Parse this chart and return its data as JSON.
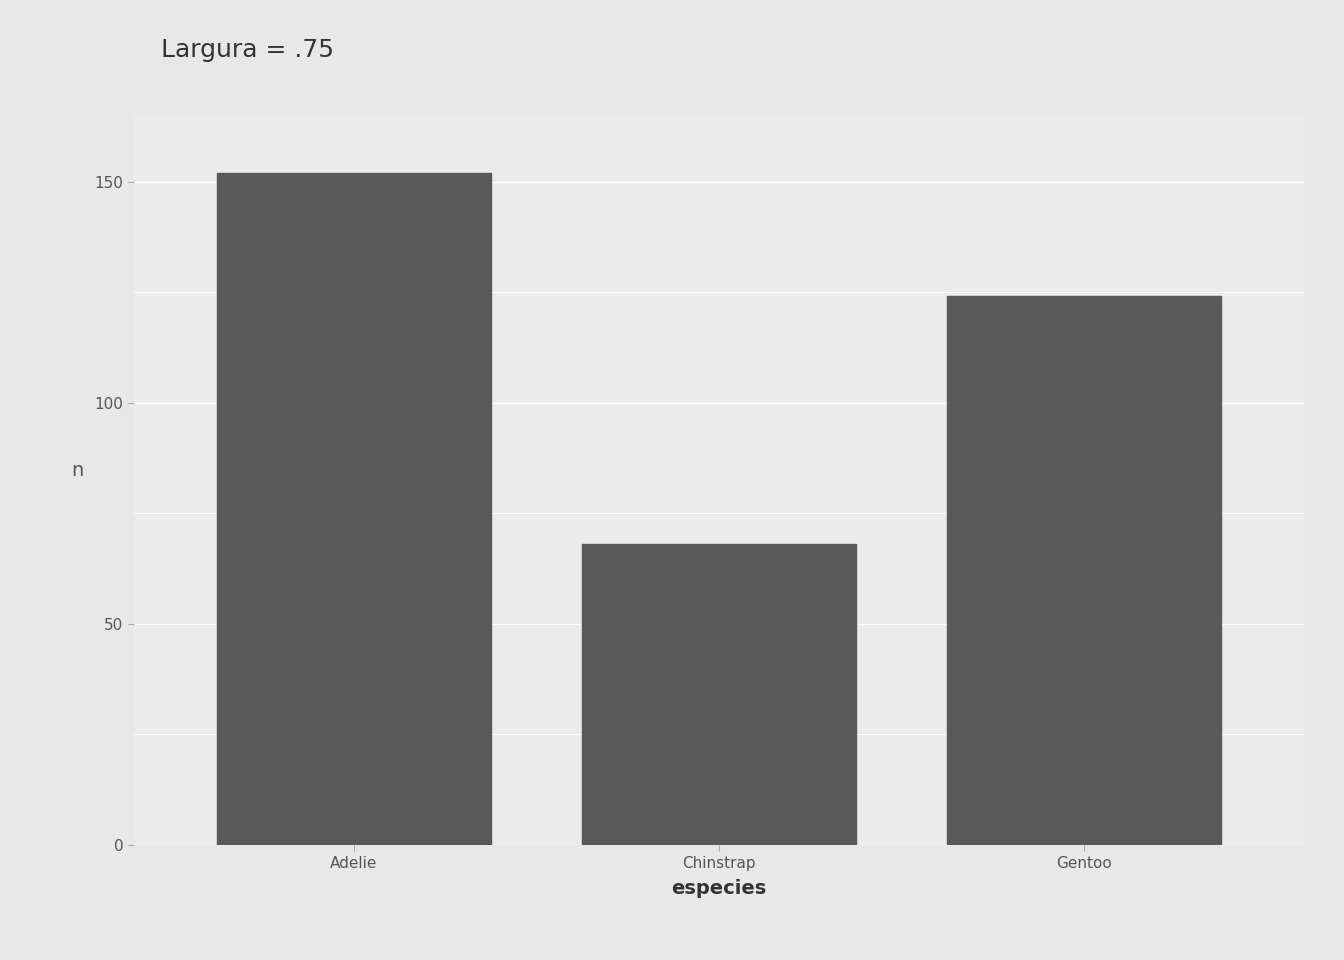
{
  "categories": [
    "Adelie",
    "Chinstrap",
    "Gentoo"
  ],
  "values": [
    152,
    68,
    124
  ],
  "bar_color": "#595959",
  "bar_width": 0.75,
  "title": "Largura = .75",
  "xlabel": "especies",
  "ylabel": "n",
  "ylim": [
    0,
    165
  ],
  "yticks": [
    0,
    50,
    100,
    150
  ],
  "outer_bg": "#e8e8e8",
  "panel_bg": "#ebebeb",
  "grid_color": "#ffffff",
  "title_fontsize": 18,
  "axis_label_fontsize": 14,
  "tick_fontsize": 11
}
